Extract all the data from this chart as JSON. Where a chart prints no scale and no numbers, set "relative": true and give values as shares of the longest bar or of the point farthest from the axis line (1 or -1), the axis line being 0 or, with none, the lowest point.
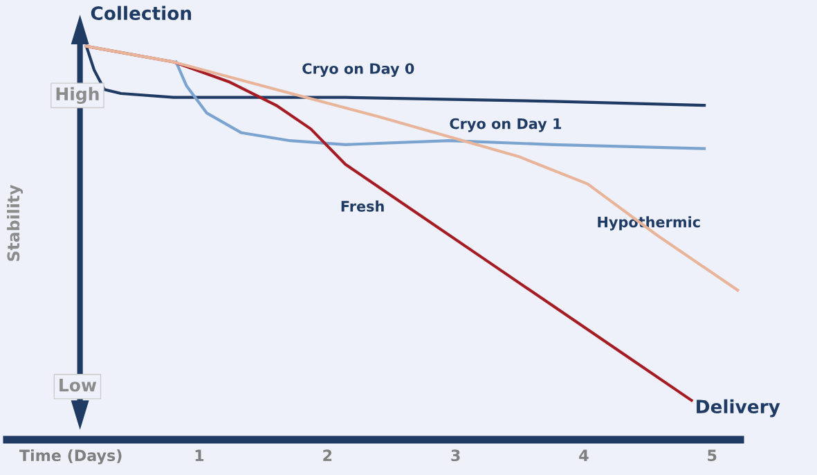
{
  "chart_data": {
    "type": "line",
    "relative": true,
    "ylabel": "Stability",
    "xlim": [
      -0.5,
      5.22
    ],
    "xticks": [
      {
        "value": 0,
        "label": "Time (Days)"
      },
      1,
      2,
      3,
      4,
      5
    ],
    "annotations": [
      "Collection",
      "High",
      "Low",
      "Delivery"
    ],
    "grid": false,
    "marker": "none",
    "line_style": "solid",
    "series": [
      {
        "name": "Cryo on Day 0",
        "color": "#1f3b63",
        "x": [
          0.12,
          0.18,
          0.26,
          0.39,
          0.8,
          2.14,
          3.76,
          4.94
        ],
        "values": [
          1,
          0.94,
          0.89,
          0.88,
          0.87,
          0.87,
          0.86,
          0.85
        ]
      },
      {
        "name": "Cryo on Day 1",
        "color": "#7ba3cf",
        "x": [
          0.82,
          0.9,
          1.06,
          1.33,
          1.71,
          2.14,
          2.95,
          3.76,
          4.94
        ],
        "values": [
          0.96,
          0.9,
          0.83,
          0.78,
          0.76,
          0.75,
          0.76,
          0.75,
          0.74
        ]
      },
      {
        "name": "Fresh",
        "color": "#a51c24",
        "x": [
          0.12,
          0.8,
          1.23,
          1.6,
          1.87,
          2.14,
          2.68,
          3.22,
          3.76,
          4.3,
          4.84
        ],
        "values": [
          1,
          0.96,
          0.91,
          0.85,
          0.79,
          0.7,
          0.58,
          0.46,
          0.34,
          0.22,
          0.1
        ]
      },
      {
        "name": "Hypothermic",
        "color": "#e8b49a",
        "x": [
          0.12,
          0.8,
          1.6,
          2.41,
          2.95,
          3.49,
          4.03,
          4.57,
          5.2
        ],
        "values": [
          1,
          0.96,
          0.89,
          0.82,
          0.77,
          0.72,
          0.65,
          0.52,
          0.38
        ]
      }
    ]
  }
}
